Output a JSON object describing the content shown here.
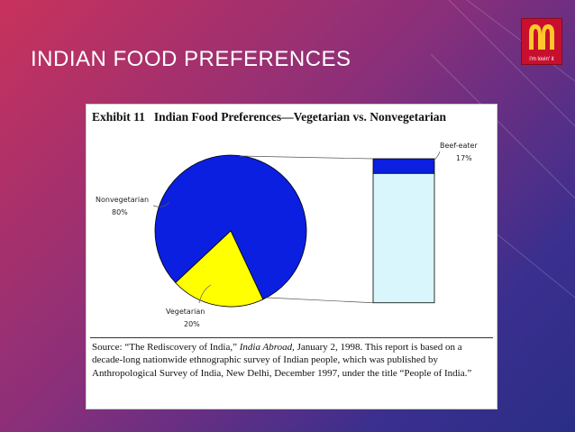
{
  "slide": {
    "title": "INDIAN FOOD PREFERENCES",
    "logo_tagline": "i'm lovin' it"
  },
  "exhibit": {
    "number": "Exhibit 11",
    "title": "Indian Food Preferences—Vegetarian vs. Nonvegetarian"
  },
  "source": {
    "prefix": "Source: “The Rediscovery of India,”",
    "publication": "India Abroad,",
    "body": "January 2, 1998. This report is based on a decade-long nationwide ethnographic survey of Indian people, which was published by Anthropological Survey of India, New Delhi, December 1997, under the title “People of India.”"
  },
  "colors": {
    "nonveg": "#0a1fe0",
    "veg": "#ffff00",
    "bar_rest": "#d8f6fb",
    "brand_red": "#c8102e",
    "brand_gold": "#ffc72c"
  },
  "chart_data": {
    "type": "pie",
    "title": "Indian Food Preferences—Vegetarian vs. Nonvegetarian",
    "slices": [
      {
        "label": "Nonvegetarian",
        "value": 80,
        "value_label": "80%"
      },
      {
        "label": "Vegetarian",
        "value": 20,
        "value_label": "20%"
      }
    ],
    "breakdown": {
      "of": "Nonvegetarian",
      "segments": [
        {
          "label": "Beef-eater",
          "value": 17,
          "value_label": "17%"
        },
        {
          "label": "",
          "value": 83
        }
      ]
    }
  }
}
